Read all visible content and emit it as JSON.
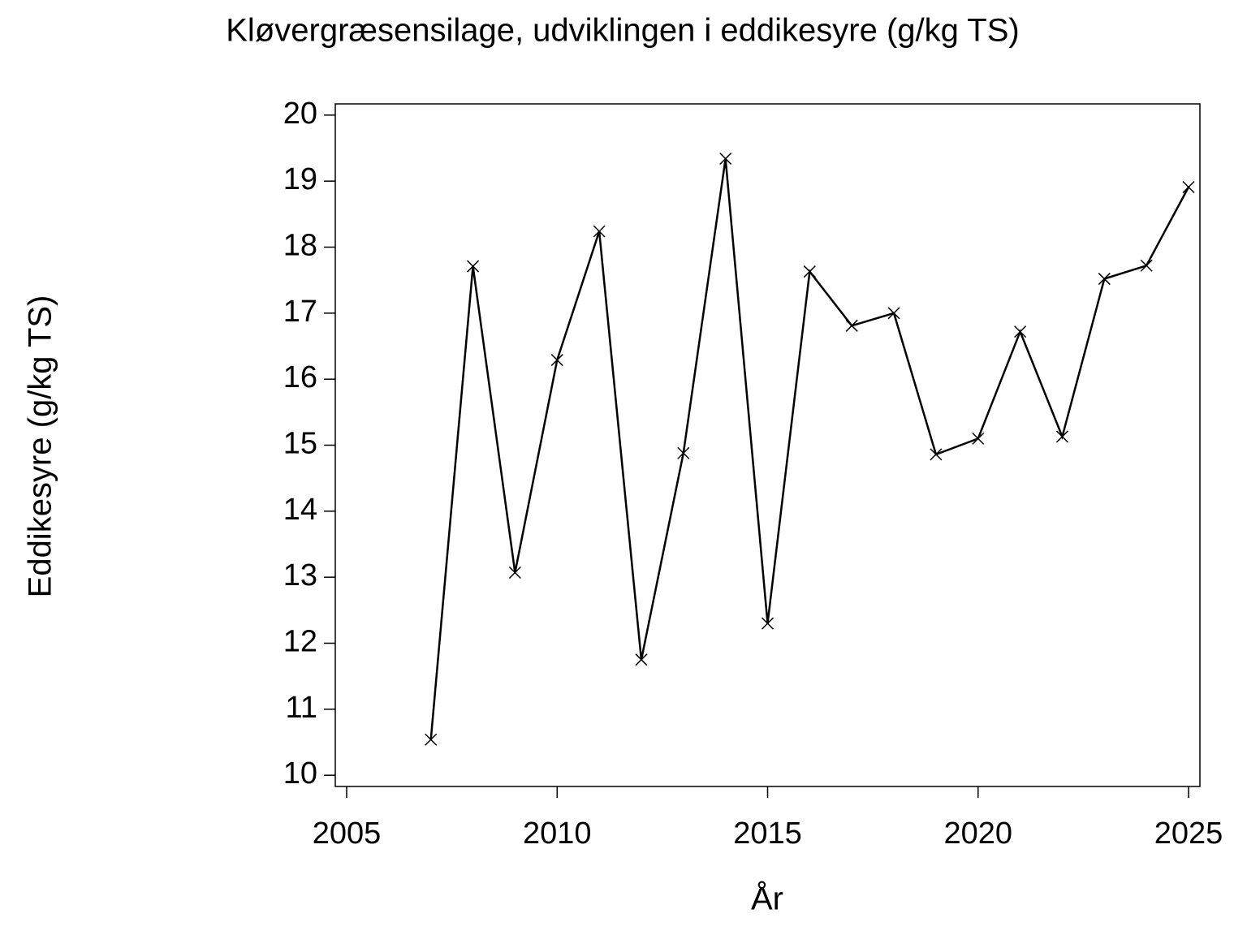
{
  "chart_data": {
    "type": "line",
    "title": "Kløvergræsensilage, udviklingen i eddikesyre (g/kg TS)",
    "x_label": "År",
    "y_label": "Eddikesyre (g/kg TS)",
    "x": [
      2007,
      2008,
      2009,
      2010,
      2011,
      2012,
      2013,
      2014,
      2015,
      2016,
      2017,
      2018,
      2019,
      2020,
      2021,
      2022,
      2023,
      2024,
      2025
    ],
    "values": [
      10.54,
      17.71,
      13.07,
      16.29,
      18.24,
      11.75,
      14.88,
      19.34,
      12.3,
      17.63,
      16.81,
      17.0,
      14.86,
      15.1,
      16.72,
      15.13,
      17.52,
      17.72,
      18.91
    ],
    "color": "#000000",
    "xlim": [
      2004.73,
      2025.27
    ],
    "xticks": [
      2005,
      2010,
      2015,
      2020,
      2025
    ],
    "ylim": [
      9.83,
      20.17
    ],
    "yticks": [
      10,
      11,
      12,
      13,
      14,
      15,
      16,
      17,
      18,
      19,
      20
    ]
  }
}
